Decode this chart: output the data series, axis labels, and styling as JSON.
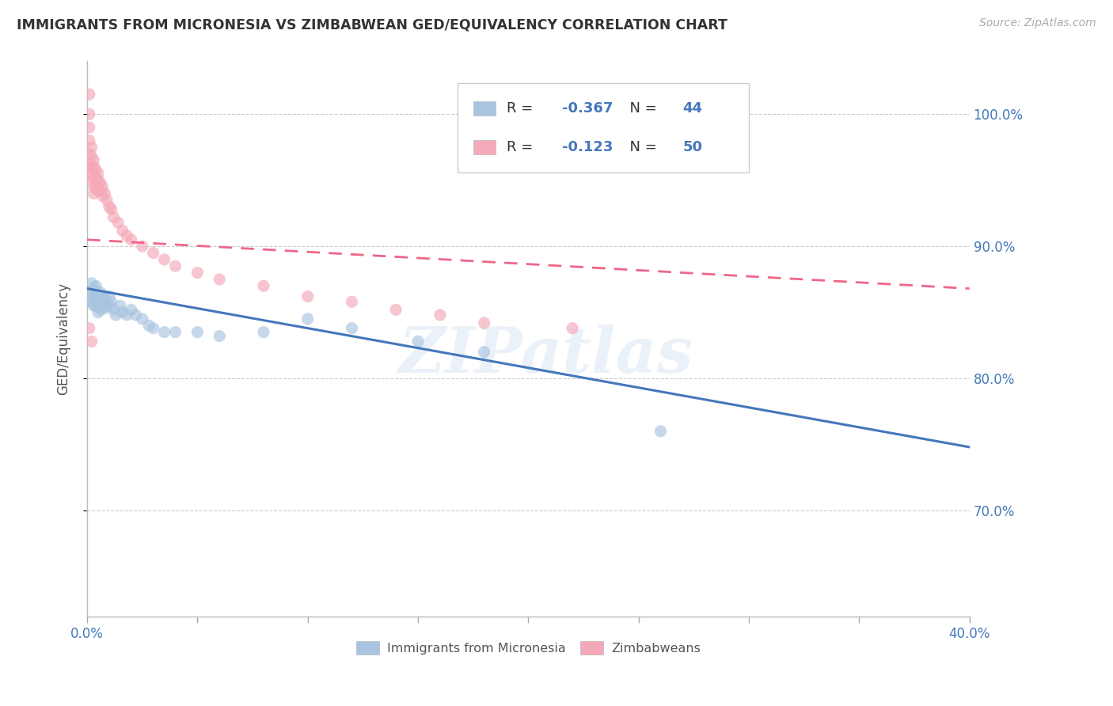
{
  "title": "IMMIGRANTS FROM MICRONESIA VS ZIMBABWEAN GED/EQUIVALENCY CORRELATION CHART",
  "source": "Source: ZipAtlas.com",
  "ylabel": "GED/Equivalency",
  "legend_label_1": "Immigrants from Micronesia",
  "legend_label_2": "Zimbabweans",
  "r1": "-0.367",
  "n1": "44",
  "r2": "-0.123",
  "n2": "50",
  "color_blue": "#A8C4E0",
  "color_pink": "#F4A8B8",
  "color_line_blue": "#4477BB",
  "color_line_pink": "#EE6688",
  "xlim": [
    0.0,
    0.4
  ],
  "ylim": [
    0.62,
    1.04
  ],
  "ytick_positions": [
    0.7,
    0.8,
    0.9,
    1.0
  ],
  "ytick_labels": [
    "70.0%",
    "80.0%",
    "90.0%",
    "100.0%"
  ],
  "watermark": "ZIPatlas",
  "blue_x": [
    0.001,
    0.001,
    0.002,
    0.002,
    0.003,
    0.003,
    0.003,
    0.004,
    0.004,
    0.004,
    0.005,
    0.005,
    0.005,
    0.006,
    0.006,
    0.006,
    0.007,
    0.007,
    0.008,
    0.008,
    0.009,
    0.01,
    0.01,
    0.011,
    0.012,
    0.013,
    0.015,
    0.016,
    0.018,
    0.02,
    0.022,
    0.025,
    0.028,
    0.03,
    0.035,
    0.04,
    0.05,
    0.06,
    0.08,
    0.1,
    0.12,
    0.15,
    0.18,
    0.26
  ],
  "blue_y": [
    0.865,
    0.86,
    0.872,
    0.858,
    0.868,
    0.862,
    0.855,
    0.87,
    0.86,
    0.855,
    0.862,
    0.858,
    0.85,
    0.865,
    0.858,
    0.852,
    0.862,
    0.855,
    0.86,
    0.853,
    0.855,
    0.862,
    0.855,
    0.858,
    0.852,
    0.848,
    0.855,
    0.85,
    0.848,
    0.852,
    0.848,
    0.845,
    0.84,
    0.838,
    0.835,
    0.835,
    0.835,
    0.832,
    0.835,
    0.845,
    0.838,
    0.828,
    0.82,
    0.76
  ],
  "pink_x": [
    0.001,
    0.001,
    0.001,
    0.001,
    0.001,
    0.001,
    0.002,
    0.002,
    0.002,
    0.002,
    0.002,
    0.003,
    0.003,
    0.003,
    0.003,
    0.003,
    0.004,
    0.004,
    0.004,
    0.005,
    0.005,
    0.005,
    0.006,
    0.006,
    0.007,
    0.007,
    0.008,
    0.009,
    0.01,
    0.011,
    0.012,
    0.014,
    0.016,
    0.018,
    0.02,
    0.025,
    0.03,
    0.035,
    0.04,
    0.05,
    0.06,
    0.08,
    0.1,
    0.12,
    0.14,
    0.16,
    0.18,
    0.22,
    0.001,
    0.002
  ],
  "pink_y": [
    1.015,
    1.0,
    0.99,
    0.98,
    0.97,
    0.96,
    0.975,
    0.968,
    0.96,
    0.955,
    0.95,
    0.965,
    0.96,
    0.952,
    0.945,
    0.94,
    0.958,
    0.952,
    0.945,
    0.955,
    0.95,
    0.942,
    0.948,
    0.942,
    0.945,
    0.938,
    0.94,
    0.935,
    0.93,
    0.928,
    0.922,
    0.918,
    0.912,
    0.908,
    0.905,
    0.9,
    0.895,
    0.89,
    0.885,
    0.88,
    0.875,
    0.87,
    0.862,
    0.858,
    0.852,
    0.848,
    0.842,
    0.838,
    0.838,
    0.828
  ],
  "blue_trend_x": [
    0.0,
    0.4
  ],
  "blue_trend_y": [
    0.868,
    0.748
  ],
  "pink_trend_x": [
    0.0,
    0.4
  ],
  "pink_trend_y": [
    0.905,
    0.868
  ]
}
